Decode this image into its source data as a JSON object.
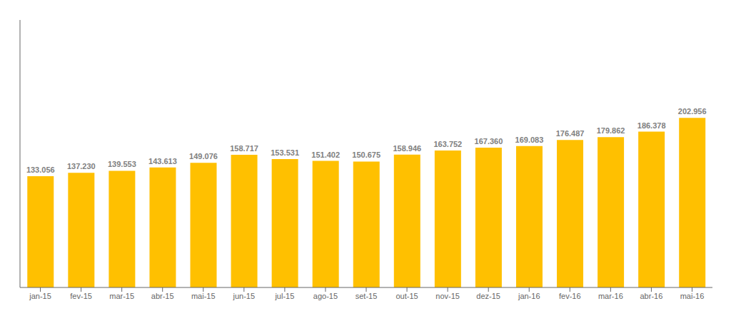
{
  "chart_data": {
    "type": "bar",
    "categories": [
      "jan-15",
      "fev-15",
      "mar-15",
      "abr-15",
      "mai-15",
      "jun-15",
      "jul-15",
      "ago-15",
      "set-15",
      "out-15",
      "nov-15",
      "dez-15",
      "jan-16",
      "fev-16",
      "mar-16",
      "abr-16",
      "mai-16"
    ],
    "values": [
      133056,
      137230,
      139553,
      143613,
      149076,
      158717,
      153531,
      151402,
      150675,
      158946,
      163752,
      167360,
      169083,
      176487,
      179862,
      186378,
      202956
    ],
    "value_labels": [
      "133.056",
      "137.230",
      "139.553",
      "143.613",
      "149.076",
      "158.717",
      "153.531",
      "151.402",
      "150.675",
      "158.946",
      "163.752",
      "167.360",
      "169.083",
      "176.487",
      "179.862",
      "186.378",
      "202.956"
    ],
    "color": "#FFC000",
    "ylim": [
      0,
      320000
    ],
    "data_labels": true,
    "tick_labels": "x"
  }
}
